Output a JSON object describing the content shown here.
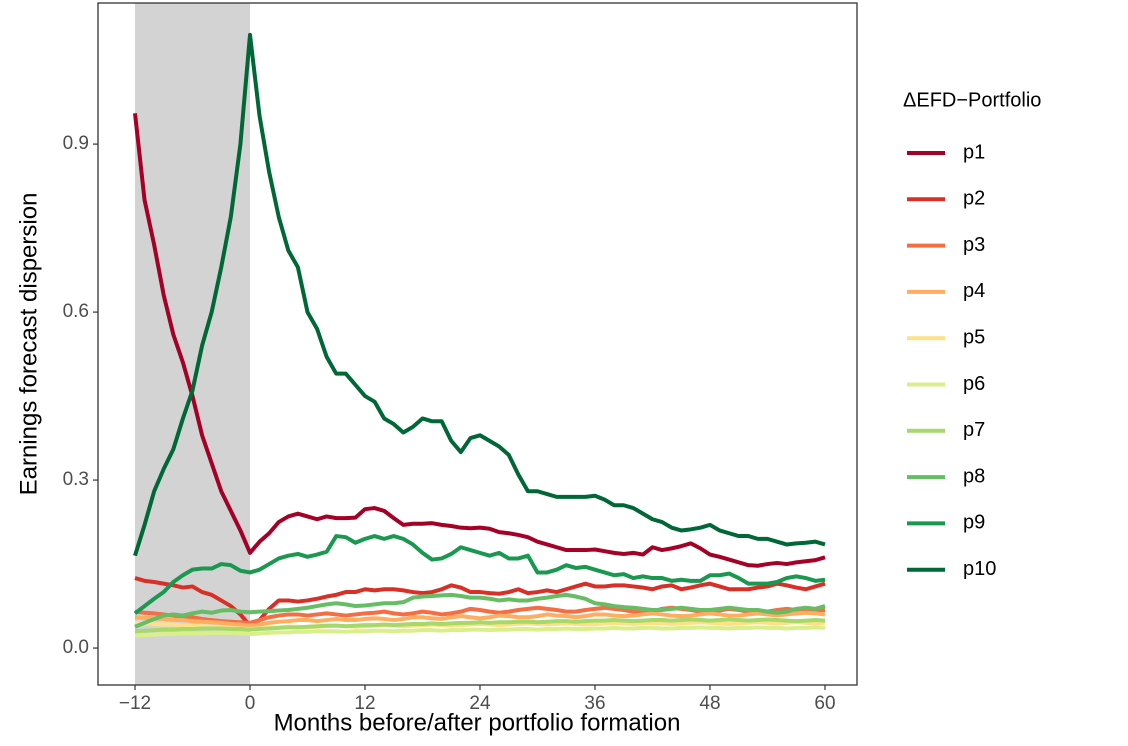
{
  "chart_data": {
    "type": "line",
    "x_label": "Months before/after portfolio formation",
    "y_label": "Earnings forecast dispersion",
    "legend_title": "ΔEFD−Portfolio",
    "legend_position": "right",
    "grid": true,
    "highlight_x": [
      -12,
      0
    ],
    "xlim": [
      -15.86,
      63.34
    ],
    "ylim": [
      -0.066,
      1.152
    ],
    "xticks": [
      {
        "value": -12,
        "label": "−12"
      },
      0,
      12,
      24,
      36,
      48,
      60
    ],
    "yticks": [
      {
        "value": 0,
        "label": "0.0"
      },
      0.3,
      0.6,
      0.9
    ],
    "x": [
      -12,
      -11,
      -10,
      -9,
      -8,
      -7,
      -6,
      -5,
      -4,
      -3,
      -2,
      -1,
      0,
      1,
      2,
      3,
      4,
      5,
      6,
      7,
      8,
      9,
      10,
      11,
      12,
      13,
      14,
      15,
      16,
      17,
      18,
      19,
      20,
      21,
      22,
      23,
      24,
      25,
      26,
      27,
      28,
      29,
      30,
      31,
      32,
      33,
      34,
      35,
      36,
      37,
      38,
      39,
      40,
      41,
      42,
      43,
      44,
      45,
      46,
      47,
      48,
      49,
      50,
      51,
      52,
      53,
      54,
      55,
      56,
      57,
      58,
      59,
      60
    ],
    "series": [
      {
        "name": "p1",
        "color": "#a50026",
        "values": [
          0.955,
          0.8,
          0.72,
          0.63,
          0.56,
          0.51,
          0.45,
          0.38,
          0.33,
          0.28,
          0.245,
          0.21,
          0.17,
          0.19,
          0.205,
          0.225,
          0.235,
          0.24,
          0.235,
          0.23,
          0.235,
          0.232,
          0.232,
          0.233,
          0.248,
          0.25,
          0.245,
          0.232,
          0.22,
          0.222,
          0.222,
          0.223,
          0.22,
          0.218,
          0.215,
          0.214,
          0.215,
          0.213,
          0.207,
          0.205,
          0.202,
          0.198,
          0.19,
          0.185,
          0.18,
          0.175,
          0.175,
          0.175,
          0.176,
          0.173,
          0.17,
          0.168,
          0.17,
          0.167,
          0.18,
          0.175,
          0.178,
          0.182,
          0.187,
          0.178,
          0.167,
          0.163,
          0.158,
          0.153,
          0.148,
          0.147,
          0.15,
          0.152,
          0.15,
          0.153,
          0.155,
          0.157,
          0.162
        ]
      },
      {
        "name": "p2",
        "color": "#d73027",
        "values": [
          0.125,
          0.12,
          0.118,
          0.115,
          0.112,
          0.108,
          0.11,
          0.1,
          0.095,
          0.085,
          0.075,
          0.06,
          0.04,
          0.05,
          0.07,
          0.085,
          0.085,
          0.083,
          0.085,
          0.088,
          0.092,
          0.095,
          0.1,
          0.1,
          0.105,
          0.103,
          0.105,
          0.105,
          0.103,
          0.1,
          0.098,
          0.1,
          0.105,
          0.112,
          0.108,
          0.1,
          0.1,
          0.098,
          0.097,
          0.1,
          0.105,
          0.098,
          0.1,
          0.103,
          0.1,
          0.105,
          0.11,
          0.115,
          0.11,
          0.11,
          0.112,
          0.112,
          0.11,
          0.108,
          0.105,
          0.11,
          0.112,
          0.105,
          0.108,
          0.112,
          0.115,
          0.11,
          0.105,
          0.105,
          0.105,
          0.108,
          0.11,
          0.115,
          0.112,
          0.108,
          0.105,
          0.11,
          0.115
        ]
      },
      {
        "name": "p3",
        "color": "#f46d43",
        "values": [
          0.065,
          0.063,
          0.062,
          0.06,
          0.058,
          0.055,
          0.055,
          0.052,
          0.05,
          0.048,
          0.047,
          0.046,
          0.045,
          0.05,
          0.055,
          0.058,
          0.06,
          0.06,
          0.058,
          0.06,
          0.062,
          0.06,
          0.058,
          0.06,
          0.062,
          0.063,
          0.065,
          0.062,
          0.06,
          0.062,
          0.065,
          0.063,
          0.06,
          0.062,
          0.065,
          0.07,
          0.068,
          0.065,
          0.063,
          0.065,
          0.068,
          0.07,
          0.072,
          0.07,
          0.068,
          0.065,
          0.065,
          0.068,
          0.07,
          0.072,
          0.07,
          0.068,
          0.065,
          0.063,
          0.065,
          0.07,
          0.072,
          0.07,
          0.068,
          0.065,
          0.065,
          0.067,
          0.07,
          0.068,
          0.065,
          0.063,
          0.065,
          0.068,
          0.07,
          0.068,
          0.065,
          0.067,
          0.068
        ]
      },
      {
        "name": "p4",
        "color": "#fdae61",
        "values": [
          0.055,
          0.054,
          0.053,
          0.052,
          0.05,
          0.05,
          0.048,
          0.047,
          0.046,
          0.045,
          0.043,
          0.042,
          0.04,
          0.042,
          0.045,
          0.047,
          0.048,
          0.05,
          0.05,
          0.048,
          0.05,
          0.052,
          0.05,
          0.05,
          0.052,
          0.053,
          0.052,
          0.05,
          0.052,
          0.055,
          0.055,
          0.053,
          0.052,
          0.055,
          0.057,
          0.055,
          0.053,
          0.055,
          0.058,
          0.057,
          0.055,
          0.055,
          0.057,
          0.06,
          0.058,
          0.057,
          0.055,
          0.057,
          0.06,
          0.06,
          0.058,
          0.057,
          0.058,
          0.06,
          0.062,
          0.06,
          0.058,
          0.057,
          0.058,
          0.06,
          0.062,
          0.06,
          0.058,
          0.058,
          0.06,
          0.062,
          0.06,
          0.058,
          0.06,
          0.062,
          0.063,
          0.062,
          0.06
        ]
      },
      {
        "name": "p5",
        "color": "#fee08b",
        "values": [
          0.045,
          0.044,
          0.043,
          0.042,
          0.042,
          0.04,
          0.04,
          0.039,
          0.038,
          0.037,
          0.036,
          0.035,
          0.034,
          0.035,
          0.036,
          0.037,
          0.038,
          0.038,
          0.037,
          0.038,
          0.039,
          0.04,
          0.039,
          0.038,
          0.039,
          0.04,
          0.041,
          0.04,
          0.039,
          0.04,
          0.041,
          0.042,
          0.041,
          0.04,
          0.041,
          0.042,
          0.043,
          0.042,
          0.041,
          0.042,
          0.043,
          0.044,
          0.043,
          0.042,
          0.043,
          0.044,
          0.043,
          0.042,
          0.043,
          0.044,
          0.045,
          0.044,
          0.043,
          0.044,
          0.045,
          0.044,
          0.043,
          0.044,
          0.045,
          0.046,
          0.045,
          0.044,
          0.043,
          0.044,
          0.045,
          0.046,
          0.045,
          0.044,
          0.045,
          0.046,
          0.045,
          0.044,
          0.045
        ]
      },
      {
        "name": "p6",
        "color": "#d9ef8b",
        "values": [
          0.022,
          0.023,
          0.024,
          0.025,
          0.025,
          0.026,
          0.026,
          0.026,
          0.027,
          0.027,
          0.027,
          0.026,
          0.025,
          0.026,
          0.027,
          0.028,
          0.028,
          0.029,
          0.029,
          0.03,
          0.03,
          0.03,
          0.029,
          0.03,
          0.03,
          0.031,
          0.031,
          0.03,
          0.031,
          0.031,
          0.032,
          0.032,
          0.031,
          0.032,
          0.032,
          0.033,
          0.033,
          0.032,
          0.033,
          0.033,
          0.034,
          0.034,
          0.033,
          0.034,
          0.034,
          0.035,
          0.034,
          0.034,
          0.035,
          0.035,
          0.036,
          0.035,
          0.035,
          0.036,
          0.036,
          0.035,
          0.035,
          0.036,
          0.036,
          0.037,
          0.036,
          0.036,
          0.035,
          0.036,
          0.036,
          0.037,
          0.036,
          0.036,
          0.035,
          0.036,
          0.036,
          0.037,
          0.036
        ]
      },
      {
        "name": "p7",
        "color": "#a6d96a",
        "values": [
          0.03,
          0.031,
          0.032,
          0.033,
          0.033,
          0.034,
          0.034,
          0.035,
          0.035,
          0.035,
          0.034,
          0.034,
          0.033,
          0.034,
          0.035,
          0.036,
          0.037,
          0.037,
          0.038,
          0.039,
          0.04,
          0.04,
          0.039,
          0.04,
          0.041,
          0.041,
          0.042,
          0.041,
          0.042,
          0.043,
          0.043,
          0.044,
          0.043,
          0.044,
          0.045,
          0.045,
          0.046,
          0.045,
          0.046,
          0.046,
          0.047,
          0.047,
          0.046,
          0.047,
          0.048,
          0.048,
          0.047,
          0.048,
          0.049,
          0.049,
          0.05,
          0.049,
          0.048,
          0.049,
          0.05,
          0.05,
          0.049,
          0.05,
          0.051,
          0.05,
          0.049,
          0.05,
          0.051,
          0.05,
          0.049,
          0.05,
          0.051,
          0.05,
          0.049,
          0.048,
          0.049,
          0.05,
          0.049
        ]
      },
      {
        "name": "p8",
        "color": "#66bd63",
        "values": [
          0.038,
          0.045,
          0.052,
          0.058,
          0.06,
          0.058,
          0.062,
          0.065,
          0.063,
          0.067,
          0.068,
          0.065,
          0.064,
          0.065,
          0.066,
          0.067,
          0.068,
          0.07,
          0.072,
          0.075,
          0.078,
          0.08,
          0.078,
          0.075,
          0.076,
          0.078,
          0.08,
          0.08,
          0.082,
          0.09,
          0.092,
          0.093,
          0.094,
          0.095,
          0.093,
          0.09,
          0.09,
          0.088,
          0.085,
          0.087,
          0.085,
          0.085,
          0.088,
          0.09,
          0.093,
          0.095,
          0.092,
          0.088,
          0.08,
          0.078,
          0.075,
          0.073,
          0.072,
          0.07,
          0.068,
          0.068,
          0.07,
          0.072,
          0.07,
          0.068,
          0.068,
          0.07,
          0.072,
          0.07,
          0.068,
          0.068,
          0.065,
          0.063,
          0.065,
          0.07,
          0.072,
          0.07,
          0.075
        ]
      },
      {
        "name": "p9",
        "color": "#1a9850",
        "values": [
          0.062,
          0.075,
          0.088,
          0.1,
          0.118,
          0.13,
          0.14,
          0.142,
          0.142,
          0.15,
          0.148,
          0.138,
          0.135,
          0.14,
          0.15,
          0.16,
          0.165,
          0.168,
          0.163,
          0.167,
          0.172,
          0.2,
          0.198,
          0.188,
          0.195,
          0.2,
          0.195,
          0.2,
          0.195,
          0.185,
          0.17,
          0.158,
          0.16,
          0.168,
          0.18,
          0.175,
          0.17,
          0.165,
          0.17,
          0.16,
          0.16,
          0.165,
          0.135,
          0.135,
          0.14,
          0.148,
          0.143,
          0.145,
          0.14,
          0.135,
          0.13,
          0.132,
          0.125,
          0.128,
          0.125,
          0.125,
          0.12,
          0.122,
          0.12,
          0.12,
          0.13,
          0.13,
          0.133,
          0.125,
          0.115,
          0.115,
          0.115,
          0.118,
          0.125,
          0.128,
          0.125,
          0.12,
          0.122
        ]
      },
      {
        "name": "p10",
        "color": "#006837",
        "values": [
          0.165,
          0.22,
          0.28,
          0.32,
          0.355,
          0.41,
          0.46,
          0.54,
          0.6,
          0.68,
          0.77,
          0.9,
          1.095,
          0.95,
          0.85,
          0.77,
          0.71,
          0.68,
          0.6,
          0.57,
          0.52,
          0.49,
          0.49,
          0.47,
          0.45,
          0.44,
          0.41,
          0.4,
          0.385,
          0.395,
          0.41,
          0.405,
          0.405,
          0.37,
          0.35,
          0.375,
          0.38,
          0.37,
          0.36,
          0.345,
          0.31,
          0.28,
          0.28,
          0.275,
          0.27,
          0.27,
          0.27,
          0.27,
          0.272,
          0.265,
          0.255,
          0.255,
          0.25,
          0.24,
          0.23,
          0.225,
          0.215,
          0.21,
          0.212,
          0.215,
          0.22,
          0.21,
          0.205,
          0.2,
          0.2,
          0.195,
          0.195,
          0.19,
          0.185,
          0.187,
          0.188,
          0.19,
          0.185
        ]
      }
    ]
  }
}
